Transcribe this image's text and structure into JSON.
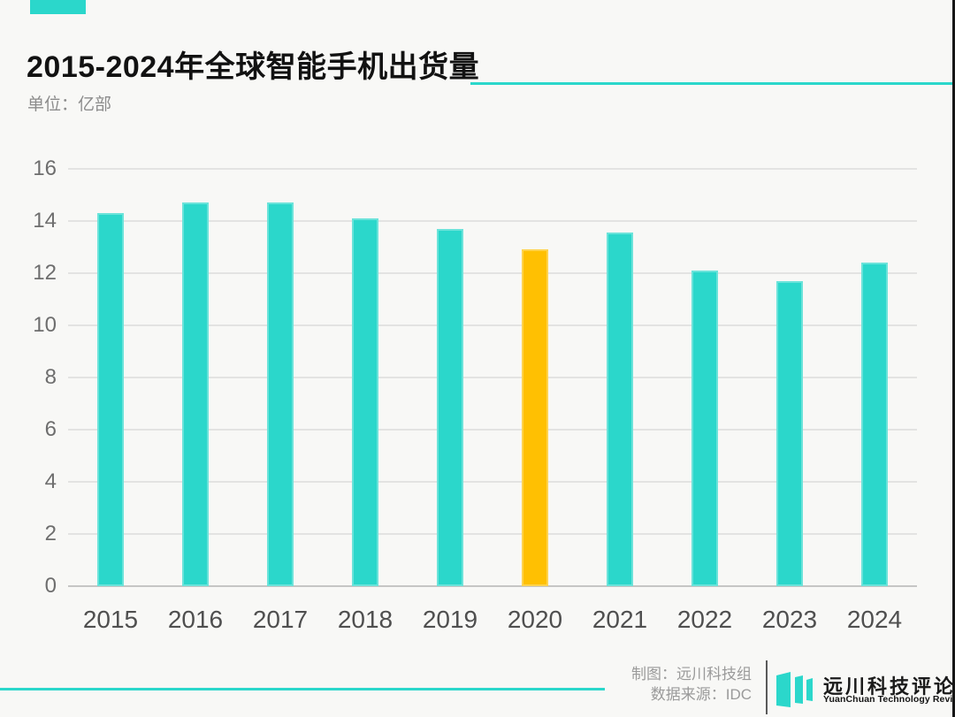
{
  "header": {
    "title": "2015-2024年全球智能手机出货量",
    "subtitle": "单位：亿部",
    "accent_color": "#2bd7cb"
  },
  "chart_data": {
    "type": "bar",
    "title": "2015-2024年全球智能手机出货量",
    "unit_label": "单位：亿部",
    "categories": [
      "2015",
      "2016",
      "2017",
      "2018",
      "2019",
      "2020",
      "2021",
      "2022",
      "2023",
      "2024"
    ],
    "values": [
      14.3,
      14.7,
      14.7,
      14.1,
      13.7,
      12.9,
      13.55,
      12.1,
      11.7,
      12.4
    ],
    "bar_color": "#2bd7cb",
    "highlight_index": 5,
    "highlight_color": "#ffc002",
    "yticks": [
      0,
      2,
      4,
      6,
      8,
      10,
      12,
      14,
      16
    ],
    "ylim": [
      0,
      16
    ],
    "grid": true,
    "legend": "none",
    "xlabel": "",
    "ylabel": "亿部"
  },
  "footer": {
    "credit_line1": "制图：远川科技组",
    "credit_line2": "数据来源：IDC",
    "logo_cn": "远川科技评论",
    "logo_en": "YuanChuan Technology Review",
    "logo_mark_color": "#2bd7cb"
  }
}
